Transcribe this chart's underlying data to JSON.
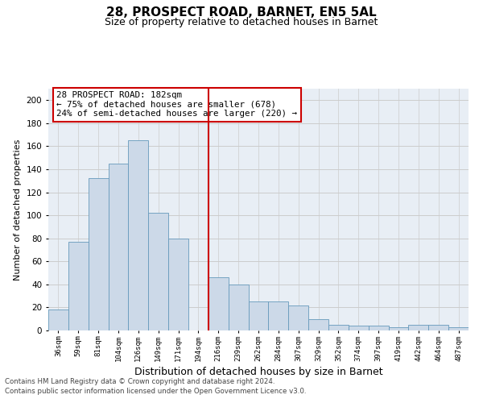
{
  "title1": "28, PROSPECT ROAD, BARNET, EN5 5AL",
  "title2": "Size of property relative to detached houses in Barnet",
  "xlabel": "Distribution of detached houses by size in Barnet",
  "ylabel": "Number of detached properties",
  "categories": [
    "36sqm",
    "59sqm",
    "81sqm",
    "104sqm",
    "126sqm",
    "149sqm",
    "171sqm",
    "194sqm",
    "216sqm",
    "239sqm",
    "262sqm",
    "284sqm",
    "307sqm",
    "329sqm",
    "352sqm",
    "374sqm",
    "397sqm",
    "419sqm",
    "442sqm",
    "464sqm",
    "487sqm"
  ],
  "values": [
    18,
    77,
    132,
    145,
    165,
    102,
    80,
    0,
    46,
    40,
    25,
    25,
    22,
    10,
    5,
    4,
    4,
    3,
    5,
    5,
    3
  ],
  "bar_color": "#ccd9e8",
  "bar_edge_color": "#6699bb",
  "redline_x": 7.5,
  "annotation_text": "28 PROSPECT ROAD: 182sqm\n← 75% of detached houses are smaller (678)\n24% of semi-detached houses are larger (220) →",
  "annotation_box_edge": "#cc0000",
  "redline_color": "#cc0000",
  "footnote1": "Contains HM Land Registry data © Crown copyright and database right 2024.",
  "footnote2": "Contains public sector information licensed under the Open Government Licence v3.0.",
  "ylim": [
    0,
    210
  ],
  "yticks": [
    0,
    20,
    40,
    60,
    80,
    100,
    120,
    140,
    160,
    180,
    200
  ],
  "grid_color": "#cccccc",
  "bg_color": "#e8eef5",
  "title1_fontsize": 11,
  "title2_fontsize": 9,
  "xlabel_fontsize": 9,
  "ylabel_fontsize": 8
}
